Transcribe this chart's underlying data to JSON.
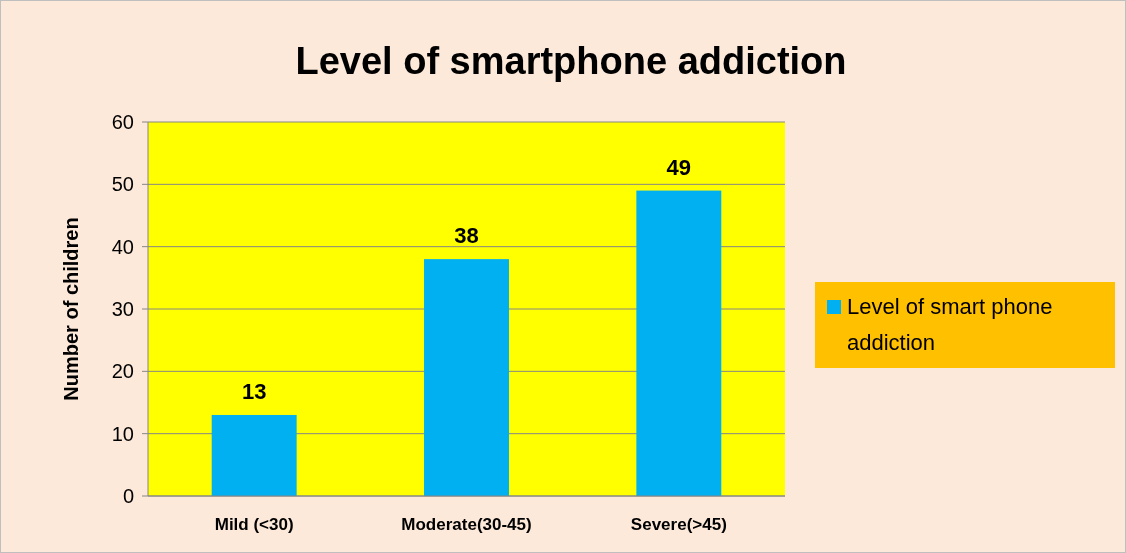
{
  "chart_data": {
    "type": "bar",
    "title": "Level of smartphone addiction",
    "ylabel": "Number of children",
    "categories": [
      "Mild (<30)",
      "Moderate(30-45)",
      "Severe(>45)"
    ],
    "series": [
      {
        "name": "Level of smart phone addiction",
        "color": "#00b0f0",
        "values": [
          13,
          38,
          49
        ]
      }
    ],
    "ylim": [
      0,
      60
    ],
    "yticks": [
      0,
      10,
      20,
      30,
      40,
      50,
      60
    ],
    "grid": "y",
    "legend": "right",
    "data_labels": true
  }
}
